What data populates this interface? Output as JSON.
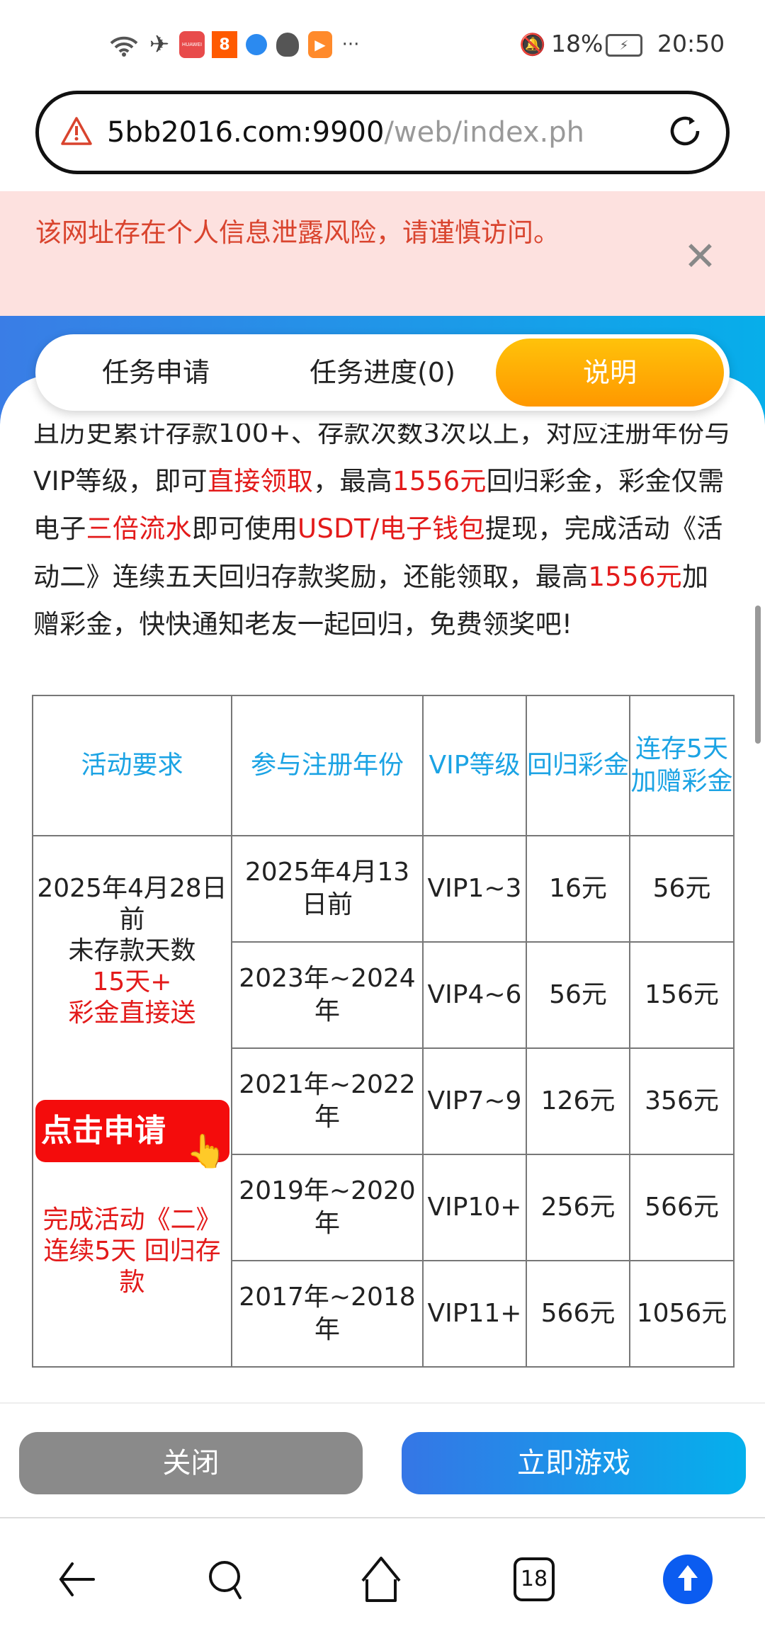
{
  "status_bar": {
    "left_icons": [
      "wifi-icon",
      "airplane-mode-icon",
      "huawei-appgallery-icon",
      "kuaishou-icon",
      "browser-icon",
      "qq-icon",
      "video-app-icon",
      "more-dots-icon"
    ],
    "more": "···",
    "huawei_label": "HUAWEI",
    "battery_percent": "18%",
    "time": "20:50"
  },
  "url_bar": {
    "host": "5bb2016.com:9900",
    "path": "/web/index.ph"
  },
  "warning_banner": {
    "text": "该网址存在个人信息泄露风险，请谨慎访问。",
    "color": "#d9442e"
  },
  "tabs": [
    {
      "label": "任务申请",
      "active": false
    },
    {
      "label": "任务进度(0)",
      "active": false
    },
    {
      "label": "说明",
      "active": true
    }
  ],
  "description": {
    "segments": [
      {
        "text": "且历史累计存款100+、存款次数3次以上，对应注册年份与VIP等级，即可",
        "highlight": false
      },
      {
        "text": "直接领取",
        "highlight": true
      },
      {
        "text": "，最高",
        "highlight": false
      },
      {
        "text": "1556元",
        "highlight": true
      },
      {
        "text": "回归彩金，彩金仅需电子",
        "highlight": false
      },
      {
        "text": "三倍流水",
        "highlight": true
      },
      {
        "text": "即可使用",
        "highlight": false
      },
      {
        "text": "USDT/电子钱包",
        "highlight": true
      },
      {
        "text": "提现，完成活动《活动二》连续五天回归存款奖励，还能领取，最高",
        "highlight": false
      },
      {
        "text": "1556元",
        "highlight": true
      },
      {
        "text": "加赠彩金，快快通知老友一起回归，免费领奖吧!",
        "highlight": false
      }
    ]
  },
  "table": {
    "headers": [
      "活动要求",
      "参与注册年份",
      "VIP等级",
      "回归彩金",
      "连存5天\n加赠彩金"
    ],
    "requirement": {
      "line1": "2025年4月28日前",
      "line2": "未存款天数",
      "line3": "15天+",
      "line4": "彩金直接送",
      "apply_button": "点击申请",
      "line5": "完成活动《二》",
      "line6": "连续5天 回归存款"
    },
    "rows": [
      {
        "year": "2025年4月13日前",
        "vip": "VIP1~3",
        "bonus": "16元",
        "extra": "56元"
      },
      {
        "year": "2023年~2024年",
        "vip": "VIP4~6",
        "bonus": "56元",
        "extra": "156元"
      },
      {
        "year": "2021年~2022年",
        "vip": "VIP7~9",
        "bonus": "126元",
        "extra": "356元"
      },
      {
        "year": "2019年~2020年",
        "vip": "VIP10+",
        "bonus": "256元",
        "extra": "566元"
      },
      {
        "year": "2017年~2018年",
        "vip": "VIP11+",
        "bonus": "566元",
        "extra": "1056元"
      }
    ]
  },
  "actions": {
    "close": "关闭",
    "play": "立即游戏"
  },
  "bottom_nav": {
    "tabs_count": "18"
  },
  "colors": {
    "accent_red": "#e31a1a",
    "header_blue": "#1ba3e4",
    "tab_orange": "#ff9800"
  }
}
